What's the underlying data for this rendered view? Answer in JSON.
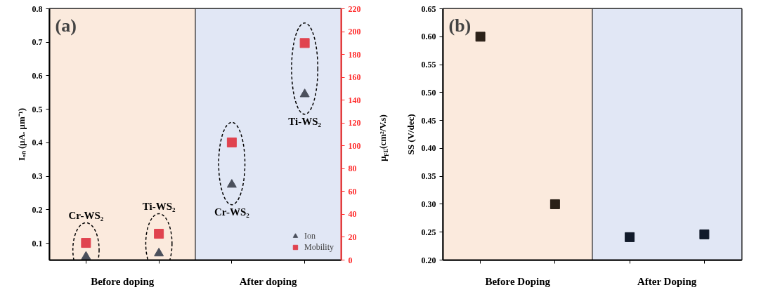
{
  "chart_data": [
    {
      "type": "scatter",
      "categories": [
        null,
        null,
        null,
        null
      ],
      "ylabel": "Iₒₙ (μA. μm⁻¹)",
      "y2label": "μ$_{FE}$(cm²/V.s)",
      "series": [
        {
          "name": "Ion",
          "color": "#4b505c",
          "marker": "triangle",
          "values": [
            0.06,
            0.07,
            0.275,
            0.545
          ]
        },
        {
          "name": "Mobility",
          "color": "#e0434f",
          "marker": "square",
          "axis": "y2",
          "values": [
            15,
            23,
            103,
            190
          ]
        }
      ],
      "ylim": [
        0.05,
        0.8
      ],
      "yticks": [
        0.1,
        0.2,
        0.3,
        0.4,
        0.5,
        0.6,
        0.7,
        0.8
      ],
      "y2lim": [
        0,
        220
      ],
      "y2ticks": [
        0,
        20,
        40,
        60,
        80,
        100,
        120,
        140,
        160,
        180,
        200,
        220
      ],
      "annotations": [
        "(a)",
        "Cr-WS₂",
        "Ti-WS₂",
        "Cr-WS₂",
        "Ti-WS₂",
        "Before doping",
        "After doping"
      ],
      "legend": "bottom right",
      "grid": false,
      "tick_labels": "y"
    },
    {
      "type": "scatter",
      "categories": [
        null,
        null,
        null,
        null
      ],
      "ylabel": "SS (V/dec)",
      "values": [
        0.6,
        0.3,
        0.241,
        0.246
      ],
      "colors": [
        "#2b2118",
        "#2b2118",
        "#111a2a",
        "#111a2a"
      ],
      "marker": "square",
      "ylim": [
        0.2,
        0.65
      ],
      "yticks": [
        {
          "value": 0.2,
          "label": "0.20"
        },
        {
          "value": 0.25,
          "label": "0.25"
        },
        {
          "value": 0.3,
          "label": "0.30"
        },
        {
          "value": 0.35,
          "label": "0.35"
        },
        {
          "value": 0.4,
          "label": "0.40"
        },
        {
          "value": 0.45,
          "label": "0.45"
        },
        {
          "value": 0.5,
          "label": "0.50"
        },
        {
          "value": 0.55,
          "label": "0.55"
        },
        {
          "value": 0.6,
          "label": "0.60"
        },
        {
          "value": 0.65,
          "label": "0.65"
        }
      ],
      "annotations": [
        "(b)",
        "Before Doping",
        "After Doping"
      ],
      "grid": false,
      "tick_labels": "y"
    }
  ]
}
